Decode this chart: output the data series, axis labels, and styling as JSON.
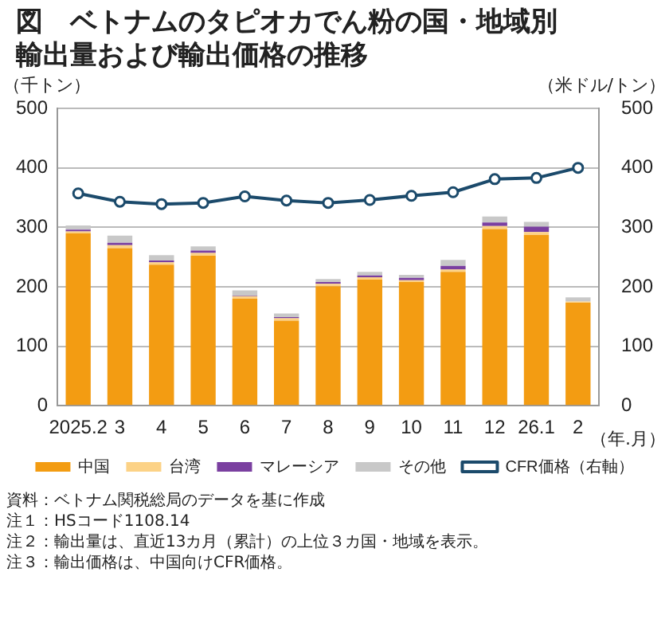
{
  "chart_data": {
    "type": "bar",
    "title": "図　ベトナムのタピオカでん粉の国・地域別輸出量および輸出価格の推移",
    "ylabel": "（千トン）",
    "y2label": "（米ドル/トン）",
    "xlabel": "（年.月）",
    "categories": [
      "2025.2",
      "3",
      "4",
      "5",
      "6",
      "7",
      "8",
      "9",
      "10",
      "11",
      "12",
      "26.1",
      "2"
    ],
    "stacked": true,
    "series": [
      {
        "name": "中国",
        "color": "#f39c12",
        "values": [
          290,
          265,
          237,
          252,
          180,
          143,
          201,
          212,
          208,
          225,
          297,
          287,
          173
        ]
      },
      {
        "name": "台湾",
        "color": "#fcd286",
        "values": [
          3,
          5,
          4,
          5,
          4,
          4,
          4,
          4,
          3,
          4,
          5,
          5,
          2
        ]
      },
      {
        "name": "マレーシア",
        "color": "#7a3fa0",
        "values": [
          3,
          4,
          3,
          4,
          1,
          2,
          3,
          3,
          4,
          6,
          6,
          9,
          0
        ]
      },
      {
        "name": "その他",
        "color": "#c8c8c8",
        "values": [
          7,
          12,
          9,
          7,
          9,
          6,
          5,
          6,
          5,
          10,
          10,
          8,
          7
        ]
      },
      {
        "name": "CFR価格（右軸）",
        "type": "line",
        "axis": "y2",
        "color": "#1b4a6b",
        "values": [
          357,
          343,
          339,
          341,
          352,
          345,
          341,
          346,
          353,
          359,
          381,
          383,
          400
        ]
      }
    ],
    "ylim": [
      0,
      500
    ],
    "yticks": [
      0,
      100,
      200,
      300,
      400,
      500
    ],
    "y2lim": [
      0,
      500
    ],
    "y2ticks": [
      0,
      100,
      200,
      300,
      400,
      500
    ],
    "grid": "y",
    "legend": "bottom",
    "marker": "circle",
    "annotations": [
      "資料：ベトナム関税総局のデータを基に作成",
      "注１：HSコード1108.14",
      "注２：輸出量は、直近13カ月（累計）の上位３カ国・地域を表示。",
      "注３：輸出価格は、中国向けCFR価格。"
    ]
  }
}
